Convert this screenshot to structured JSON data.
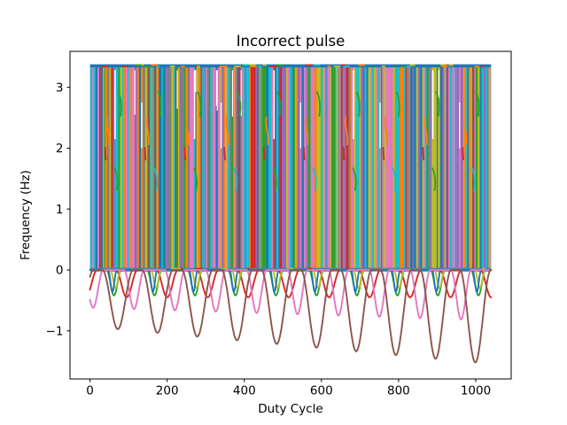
{
  "chart_data": {
    "type": "line",
    "title": "Incorrect pulse",
    "xlabel": "Duty Cycle",
    "ylabel": "Frequency (Hz)",
    "xlim": [
      -52,
      1092
    ],
    "ylim": [
      -1.79,
      3.59
    ],
    "xticks": [
      0,
      200,
      400,
      600,
      800,
      1000
    ],
    "xtick_labels": [
      "0",
      "200",
      "400",
      "600",
      "800",
      "1000"
    ],
    "yticks": [
      -1,
      0,
      1,
      2,
      3
    ],
    "ytick_labels": [
      "−1",
      "0",
      "1",
      "2",
      "3"
    ],
    "grid": false,
    "legend": false,
    "description": "Overlay of many pulse waveforms oscillating between 0 and 3.33 Hz over duty cycle 0-1040, rendered as a dense multicolored vertical-stripe band capped by a steel-blue line; several waveforms dip below zero in periodic U-shaped valleys that deepen toward the right.",
    "pulse_band": {
      "x_start": 0,
      "x_end": 1040,
      "y_low": 0,
      "y_high": 3.33,
      "stripe_colors": [
        "#17becf",
        "#e377c2",
        "#9467bd",
        "#bcbd22",
        "#1f77b4",
        "#2ca02c",
        "#7f7f7f",
        "#ff7f0e",
        "#d62728",
        "#8c564b"
      ],
      "stripe_weights": [
        16,
        15,
        13,
        12,
        12,
        10,
        7,
        5,
        4,
        4
      ],
      "top_cap_color": "#1f77b4",
      "top_cap_accents": [
        "#17becf",
        "#bcbd22",
        "#d62728",
        "#ff7f0e",
        "#2ca02c"
      ],
      "bottom_cap_colors": [
        "#4f7fb2",
        "#17becf"
      ],
      "bottom_cap_accents": [
        "#bcbd22",
        "#7f7f7f",
        "#d62728"
      ]
    },
    "dip_series": [
      {
        "name": "red",
        "color": "#d62728",
        "period": 105,
        "first_min": -10,
        "half_width": 28,
        "depth_start": 0.45,
        "depth_end": 0.45
      },
      {
        "name": "green",
        "color": "#2ca02c",
        "period": 105,
        "first_min": 62,
        "half_width": 19,
        "depth_start": 0.42,
        "depth_end": 0.42
      },
      {
        "name": "olive",
        "color": "#bcbd22",
        "period": 105,
        "first_min": 66,
        "half_width": 13,
        "depth_start": 0.3,
        "depth_end": 0.3
      },
      {
        "name": "blue",
        "color": "#1f77b4",
        "period": 105,
        "first_min": 58,
        "half_width": 11,
        "depth_start": 0.36,
        "depth_end": 0.36
      },
      {
        "name": "pink",
        "color": "#e377c2",
        "period": 106,
        "first_min": 8,
        "half_width": 26,
        "depth_start": 0.62,
        "depth_end": 0.82
      },
      {
        "name": "brown",
        "color": "#8c564b",
        "period": 103,
        "first_min": 72,
        "half_width": 40,
        "depth_start": 0.93,
        "depth_end": 1.52
      }
    ],
    "flourishes": {
      "cluster_period": 103,
      "cluster_first": 72,
      "orange_color": "#ff7f0e",
      "green_color": "#2ca02c",
      "teal_color": "#17becf",
      "red_color": "#d62728"
    },
    "frame_color": "#000000",
    "text_color": "#000000"
  }
}
